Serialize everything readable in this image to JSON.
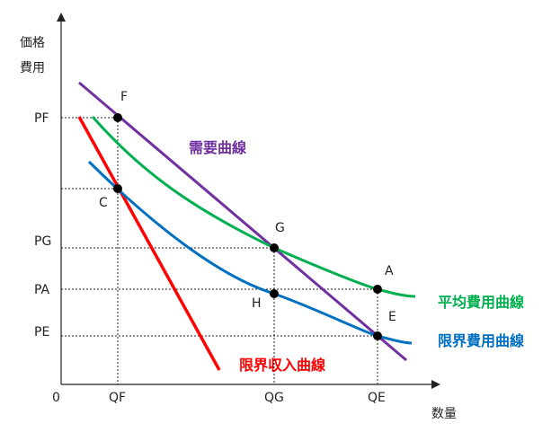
{
  "axes": {
    "y_label_line1": "価格",
    "y_label_line2": "費用",
    "x_label": "数量",
    "origin": "0"
  },
  "y_ticks": {
    "PF": "PF",
    "PG": "PG",
    "PA": "PA",
    "PE": "PE"
  },
  "x_ticks": {
    "QF": "QF",
    "QG": "QG",
    "QE": "QE"
  },
  "points": {
    "F": "F",
    "C": "C",
    "G": "G",
    "H": "H",
    "A": "A",
    "E": "E"
  },
  "curves": {
    "demand": {
      "label": "需要曲線",
      "color": "#7030a0"
    },
    "marginal_revenue": {
      "label": "限界収入曲線",
      "color": "#ff0000"
    },
    "average_cost": {
      "label": "平均費用曲線",
      "color": "#00b050"
    },
    "marginal_cost": {
      "label": "限界費用曲線",
      "color": "#0070c0"
    }
  }
}
